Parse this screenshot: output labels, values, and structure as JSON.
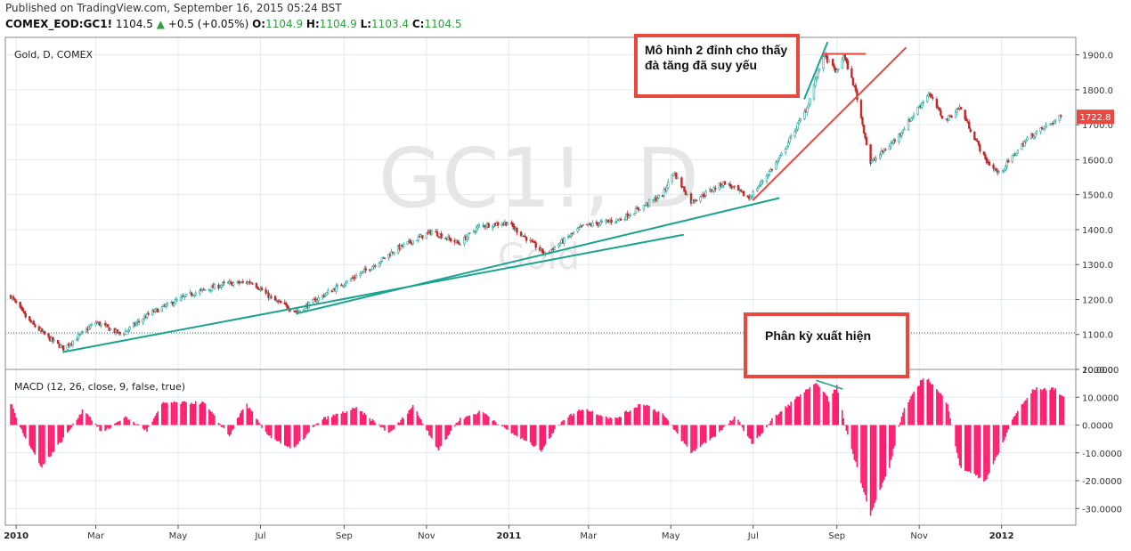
{
  "header": {
    "published": "Published on TradingView.com, September 16, 2015 05:24 BST",
    "symbol": "COMEX_EOD:GC1!",
    "last": "1104.5",
    "change": "+0.5 (+0.05%)",
    "open_label": "O:",
    "open": "1104.9",
    "high_label": "H:",
    "high": "1104.9",
    "low_label": "L:",
    "low": "1103.4",
    "close_label": "C:",
    "close": "1104.5"
  },
  "colors": {
    "up": "#26a69a",
    "down": "#c62828",
    "macd": "#ff1d6e",
    "trend": "#1ba391",
    "resistance": "#e8483e",
    "price_tag": "#e8483e",
    "annotation_border": "#e8483e"
  },
  "panes": {
    "price_label": "Gold, D, COMEX",
    "macd_label": "MACD (12, 26, close, 9, false, true)",
    "watermark_big": "GC1!, D",
    "watermark_small": "Gold"
  },
  "annotations": {
    "double_top": "Mô hình 2 đỉnh cho thấy đà tăng đã suy yếu",
    "divergence": "Phân kỳ xuất hiện"
  },
  "chart_data": [
    {
      "type": "candlestick",
      "title": "Gold, D, COMEX",
      "y_axis_side": "right",
      "ylim": [
        1000,
        1950
      ],
      "y_ticks": [
        "1000.0",
        "1100.0",
        "1200.0",
        "1300.0",
        "1400.0",
        "1500.0",
        "1600.0",
        "1700.0",
        "1800.0",
        "1900.0"
      ],
      "last_price_tag": "1722.8",
      "reference_line": 1104.5,
      "x_ticks": [
        "2010",
        "Mar",
        "May",
        "Jul",
        "Sep",
        "Nov",
        "2011",
        "Mar",
        "May",
        "Jul",
        "Sep",
        "Nov",
        "2012"
      ],
      "x_ticks_bold": [
        "2010",
        "2011",
        "2012"
      ],
      "price_path": [
        [
          "2009-12-28",
          1210
        ],
        [
          "2010-01-10",
          1140
        ],
        [
          "2010-01-25",
          1090
        ],
        [
          "2010-02-05",
          1060
        ],
        [
          "2010-03-01",
          1135
        ],
        [
          "2010-03-20",
          1100
        ],
        [
          "2010-04-10",
          1160
        ],
        [
          "2010-05-10",
          1215
        ],
        [
          "2010-06-05",
          1245
        ],
        [
          "2010-06-25",
          1250
        ],
        [
          "2010-07-10",
          1200
        ],
        [
          "2010-07-28",
          1165
        ],
        [
          "2010-08-20",
          1220
        ],
        [
          "2010-09-20",
          1290
        ],
        [
          "2010-10-10",
          1345
        ],
        [
          "2010-11-05",
          1395
        ],
        [
          "2010-11-25",
          1360
        ],
        [
          "2010-12-10",
          1410
        ],
        [
          "2010-12-31",
          1420
        ],
        [
          "2011-01-28",
          1330
        ],
        [
          "2011-02-25",
          1410
        ],
        [
          "2011-03-25",
          1430
        ],
        [
          "2011-04-25",
          1500
        ],
        [
          "2011-05-03",
          1565
        ],
        [
          "2011-05-16",
          1480
        ],
        [
          "2011-06-10",
          1535
        ],
        [
          "2011-06-28",
          1490
        ],
        [
          "2011-07-20",
          1600
        ],
        [
          "2011-08-10",
          1750
        ],
        [
          "2011-08-22",
          1900
        ],
        [
          "2011-09-01",
          1850
        ],
        [
          "2011-09-06",
          1900
        ],
        [
          "2011-09-15",
          1795
        ],
        [
          "2011-09-26",
          1590
        ],
        [
          "2011-10-15",
          1660
        ],
        [
          "2011-11-08",
          1790
        ],
        [
          "2011-11-20",
          1710
        ],
        [
          "2011-12-01",
          1750
        ],
        [
          "2011-12-20",
          1600
        ],
        [
          "2011-12-30",
          1560
        ],
        [
          "2012-01-20",
          1660
        ],
        [
          "2012-02-14",
          1722.8
        ]
      ],
      "drawings": [
        {
          "name": "support trend line",
          "from": [
            "2010-02-05",
            1050
          ],
          "to": [
            "2011-05-10",
            1385
          ]
        },
        {
          "name": "support trend line 2",
          "from": [
            "2010-07-28",
            1160
          ],
          "to": [
            "2011-07-20",
            1490
          ]
        },
        {
          "name": "steep rally line",
          "from": [
            "2011-08-08",
            1775
          ],
          "to": [
            "2011-08-25",
            1935
          ]
        },
        {
          "name": "double top line",
          "from": [
            "2011-08-22",
            1903
          ],
          "to": [
            "2011-09-22",
            1903
          ]
        },
        {
          "name": "breakdown line",
          "from": [
            "2011-07-01",
            1485
          ],
          "to": [
            "2011-10-22",
            1920
          ]
        }
      ]
    },
    {
      "type": "bar",
      "title": "MACD (12, 26, close, 9, false, true)",
      "ylim": [
        -36,
        20
      ],
      "y_ticks": [
        "20.0000",
        "10.0000",
        "0.0000",
        "-10.0000",
        "-20.0000",
        "-30.0000"
      ],
      "histogram_path": [
        [
          "2009-12-28",
          8
        ],
        [
          "2010-01-08",
          -5
        ],
        [
          "2010-01-20",
          -15
        ],
        [
          "2010-02-08",
          -3
        ],
        [
          "2010-02-20",
          6
        ],
        [
          "2010-03-06",
          -3
        ],
        [
          "2010-03-22",
          3
        ],
        [
          "2010-04-08",
          -2
        ],
        [
          "2010-04-20",
          8
        ],
        [
          "2010-05-20",
          8
        ],
        [
          "2010-06-08",
          -4
        ],
        [
          "2010-06-20",
          8
        ],
        [
          "2010-07-05",
          -3
        ],
        [
          "2010-07-25",
          -9
        ],
        [
          "2010-08-15",
          2
        ],
        [
          "2010-09-10",
          6
        ],
        [
          "2010-10-05",
          -3
        ],
        [
          "2010-10-22",
          7
        ],
        [
          "2010-11-10",
          -9
        ],
        [
          "2010-11-25",
          2
        ],
        [
          "2010-12-12",
          5
        ],
        [
          "2010-12-31",
          -2
        ],
        [
          "2011-01-25",
          -9
        ],
        [
          "2011-02-10",
          2
        ],
        [
          "2011-02-25",
          6
        ],
        [
          "2011-03-20",
          2
        ],
        [
          "2011-04-10",
          8
        ],
        [
          "2011-04-25",
          4
        ],
        [
          "2011-05-16",
          -10
        ],
        [
          "2011-06-05",
          -3
        ],
        [
          "2011-06-18",
          3
        ],
        [
          "2011-07-01",
          -7
        ],
        [
          "2011-07-15",
          2
        ],
        [
          "2011-08-05",
          11
        ],
        [
          "2011-08-18",
          15
        ],
        [
          "2011-08-26",
          9
        ],
        [
          "2011-09-01",
          14
        ],
        [
          "2011-09-08",
          -2
        ],
        [
          "2011-09-26",
          -32
        ],
        [
          "2011-10-10",
          -15
        ],
        [
          "2011-10-20",
          5
        ],
        [
          "2011-11-05",
          18
        ],
        [
          "2011-11-22",
          8
        ],
        [
          "2011-12-01",
          -15
        ],
        [
          "2011-12-20",
          -20
        ],
        [
          "2011-12-30",
          -10
        ],
        [
          "2012-01-10",
          3
        ],
        [
          "2012-01-25",
          13
        ],
        [
          "2012-02-10",
          13
        ],
        [
          "2012-02-16",
          10
        ]
      ],
      "drawings": [
        {
          "name": "divergence line",
          "from": [
            "2011-08-17",
            16
          ],
          "to": [
            "2011-09-05",
            13
          ]
        }
      ]
    }
  ]
}
